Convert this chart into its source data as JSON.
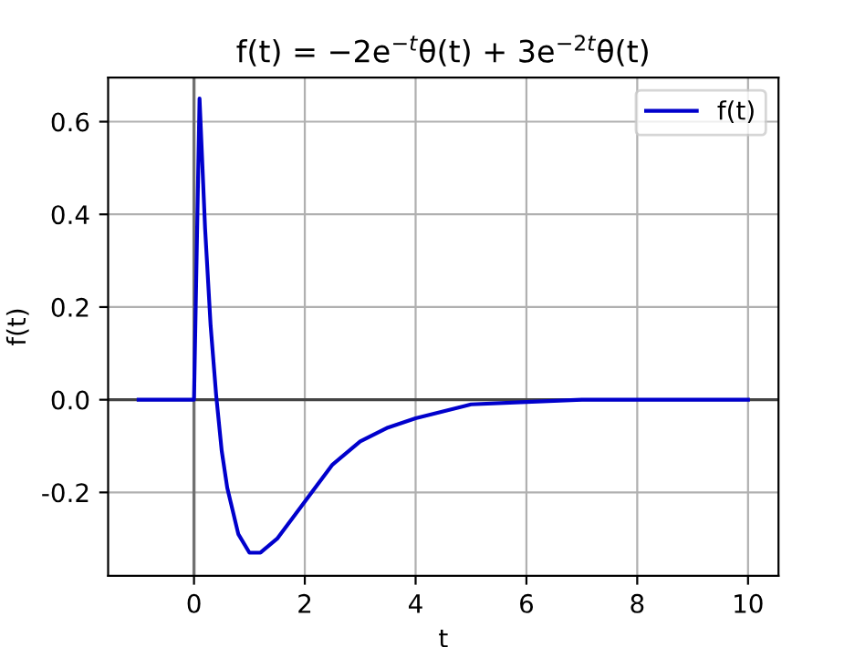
{
  "chart_data": {
    "type": "line",
    "title": "f(t) = −2e$^{−t}$θ(t) + 3e$^{−2t}$θ(t)",
    "xlabel": "t",
    "ylabel": "f(t)",
    "x": [
      -1,
      0,
      0.1,
      0.2,
      0.3,
      0.4,
      0.5,
      0.6,
      0.8,
      1.0,
      1.2,
      1.5,
      2,
      2.5,
      3,
      3.5,
      4,
      5,
      6,
      7,
      8,
      10
    ],
    "series": [
      {
        "name": "f(t)",
        "color": "#0000cc",
        "values": [
          0,
          0,
          0.65,
          0.37,
          0.16,
          0.01,
          -0.11,
          -0.19,
          -0.29,
          -0.33,
          -0.33,
          -0.3,
          -0.22,
          -0.14,
          -0.09,
          -0.06,
          -0.04,
          -0.01,
          -0.005,
          0,
          0,
          0
        ]
      }
    ],
    "xlim": [
      -1.55,
      10.55
    ],
    "ylim": [
      -0.38,
      0.695
    ],
    "xticks": [
      0,
      2,
      4,
      6,
      8,
      10
    ],
    "yticks": [
      -0.2,
      {
        "value": 0,
        "label": "0.0"
      },
      0.2,
      0.4,
      0.6
    ],
    "ref_lines": [
      {
        "axis": "y",
        "value": 0,
        "color": "#444444"
      },
      {
        "axis": "x",
        "value": 0,
        "color": "#707070"
      }
    ],
    "grid": true,
    "legend": "top right",
    "marker": "none",
    "line_style": "solid"
  }
}
